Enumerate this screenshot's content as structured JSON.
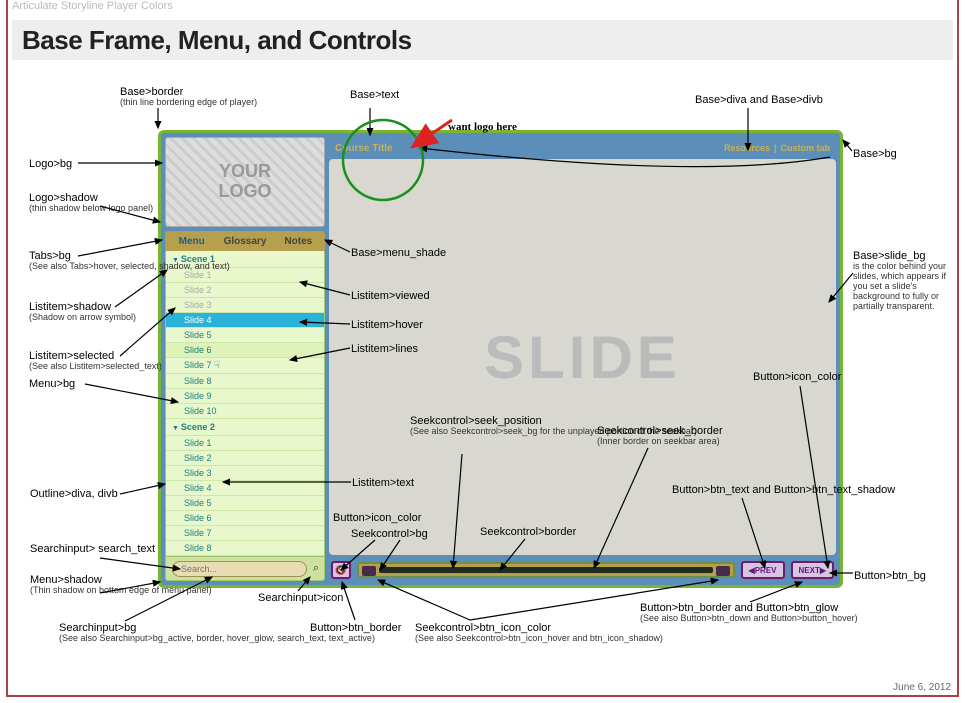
{
  "page": {
    "header": "Articulate Storyline Player Colors",
    "title": "Base Frame, Menu, and Controls",
    "date": "June 6, 2012"
  },
  "handwritten": "want logo here",
  "player": {
    "border_color": "#78b533",
    "bg_color": "#5b8fb9",
    "logo_text": "YOUR\nLOGO",
    "tabs": [
      "Menu",
      "Glossary",
      "Notes"
    ],
    "scenes": [
      {
        "name": "Scene 1",
        "slides": [
          "Slide 1",
          "Slide 2",
          "Slide 3",
          "Slide 4",
          "Slide 5",
          "Slide 6",
          "Slide 7",
          "Slide 8",
          "Slide 9",
          "Slide 10"
        ]
      },
      {
        "name": "Scene 2",
        "slides": [
          "Slide 1",
          "Slide 2",
          "Slide 3",
          "Slide 4",
          "Slide 5",
          "Slide 6",
          "Slide 7",
          "Slide 8",
          "Slide 9"
        ]
      }
    ],
    "viewed_indices": [
      0,
      1,
      2
    ],
    "selected_index": 3,
    "hover_index": 5,
    "cursor_index": 6,
    "search_placeholder": "Search...",
    "course_title": "Course Title",
    "top_links": [
      "Resources",
      "Custom tab"
    ],
    "slide_word": "SLIDE",
    "prev_label": "PREV",
    "next_label": "NEXT"
  },
  "annotations": {
    "base_border": {
      "label": "Base>border",
      "sub": "(thin line bordering edge of player)"
    },
    "base_text": {
      "label": "Base>text"
    },
    "base_diva": {
      "label": "Base>diva and Base>divb"
    },
    "base_bg": {
      "label": "Base>bg"
    },
    "logo_bg": {
      "label": "Logo>bg"
    },
    "logo_shadow": {
      "label": "Logo>shadow",
      "sub": "(thin shadow below logo panel)"
    },
    "tabs_bg": {
      "label": "Tabs>bg",
      "sub": "(See also Tabs>hover, selected, shadow, and text)"
    },
    "base_menu_shade": {
      "label": "Base>menu_shade"
    },
    "listitem_shadow": {
      "label": "Listitem>shadow",
      "sub": "(Shadow on arrow symbol)"
    },
    "listitem_viewed": {
      "label": "Listitem>viewed"
    },
    "listitem_hover": {
      "label": "Listitem>hover"
    },
    "listitem_lines": {
      "label": "Listitem>lines"
    },
    "listitem_selected": {
      "label": "Listitem>selected",
      "sub": "(See also Listitem>selected_text)"
    },
    "menu_bg": {
      "label": "Menu>bg"
    },
    "base_slide_bg": {
      "label": "Base>slide_bg",
      "sub": "is the color behind your slides, which appears if you set a slide's background to fully or partially transparent."
    },
    "button_icon_color_r": {
      "label": "Button>icon_color"
    },
    "seek_position": {
      "label": "Seekcontrol>seek_position",
      "sub": "(See also Seekcontrol>seek_bg for the unplayed portion of the seekbar)"
    },
    "seek_border2": {
      "label": "Seekcontrol>seek_border",
      "sub": "(Inner border on seekbar area)"
    },
    "btn_text": {
      "label": "Button>btn_text and Button>btn_text_shadow"
    },
    "outline_div": {
      "label": "Outline>diva, divb"
    },
    "listitem_text": {
      "label": "Listitem>text"
    },
    "button_icon_color_l": {
      "label": "Button>icon_color"
    },
    "seek_bg": {
      "label": "Seekcontrol>bg"
    },
    "seek_border": {
      "label": "Seekcontrol>border"
    },
    "search_text": {
      "label": "Searchinput> search_text"
    },
    "menu_shadow": {
      "label": "Menu>shadow",
      "sub": "(Thin shadow on bottom edge of menu panel)"
    },
    "search_icon": {
      "label": "Searchinput>icon"
    },
    "search_bg": {
      "label": "Searchinput>bg",
      "sub": "(See also Searchinput>bg_active, border, hover_glow, search_text, text_active)"
    },
    "btn_border": {
      "label": "Button>btn_border"
    },
    "seek_btn_icon": {
      "label": "Seekcontrol>btn_icon_color",
      "sub": "(See also Seekcontrol>btn_icon_hover and btn_icon_shadow)"
    },
    "btn_border_glow": {
      "label": "Button>btn_border and Button>btn_glow",
      "sub": "(See also Button>btn_down and Button>button_hover)"
    },
    "btn_bg": {
      "label": "Button>btn_bg"
    }
  }
}
